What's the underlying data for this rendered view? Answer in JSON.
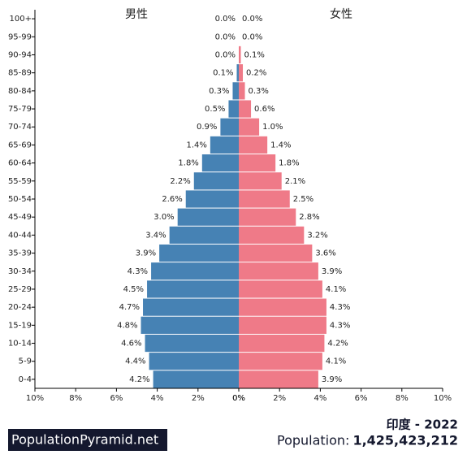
{
  "chart_data": {
    "type": "pyramid",
    "title": "印度 - 2022",
    "population_label": "Population:",
    "population": "1,425,423,212",
    "logo": "PopulationPyramid.net",
    "categories": [
      "100+",
      "95-99",
      "90-94",
      "85-89",
      "80-84",
      "75-79",
      "70-74",
      "65-69",
      "60-64",
      "55-59",
      "50-54",
      "45-49",
      "40-44",
      "35-39",
      "30-34",
      "25-29",
      "20-24",
      "15-19",
      "10-14",
      "5-9",
      "0-4"
    ],
    "series": [
      {
        "name": "男性",
        "color": "#4682b4",
        "side": "left",
        "values": [
          0.0,
          0.0,
          0.0,
          0.1,
          0.3,
          0.5,
          0.9,
          1.4,
          1.8,
          2.2,
          2.6,
          3.0,
          3.4,
          3.9,
          4.3,
          4.5,
          4.7,
          4.8,
          4.6,
          4.4,
          4.2
        ],
        "value_labels": [
          "0.0%",
          "0.0%",
          "0.0%",
          "0.1%",
          "0.3%",
          "0.5%",
          "0.9%",
          "1.4%",
          "1.8%",
          "2.2%",
          "2.6%",
          "3.0%",
          "3.4%",
          "3.9%",
          "4.3%",
          "4.5%",
          "4.7%",
          "4.8%",
          "4.6%",
          "4.4%",
          "4.2%"
        ]
      },
      {
        "name": "女性",
        "color": "#ef7a88",
        "side": "right",
        "values": [
          0.0,
          0.0,
          0.1,
          0.2,
          0.3,
          0.6,
          1.0,
          1.4,
          1.8,
          2.1,
          2.5,
          2.8,
          3.2,
          3.6,
          3.9,
          4.1,
          4.3,
          4.3,
          4.2,
          4.1,
          3.9
        ],
        "value_labels": [
          "0.0%",
          "0.0%",
          "0.1%",
          "0.2%",
          "0.3%",
          "0.6%",
          "1.0%",
          "1.4%",
          "1.8%",
          "2.1%",
          "2.5%",
          "2.8%",
          "3.2%",
          "3.6%",
          "3.9%",
          "4.1%",
          "4.3%",
          "4.3%",
          "4.2%",
          "4.1%",
          "3.9%"
        ]
      }
    ],
    "xlim": [
      0,
      10
    ],
    "xticks": [
      {
        "value": 0,
        "label": "0%"
      },
      {
        "value": 2,
        "label": "2%"
      },
      {
        "value": 4,
        "label": "4%"
      },
      {
        "value": 6,
        "label": "6%"
      },
      {
        "value": 8,
        "label": "8%"
      },
      {
        "value": 10,
        "label": "10%"
      }
    ]
  }
}
